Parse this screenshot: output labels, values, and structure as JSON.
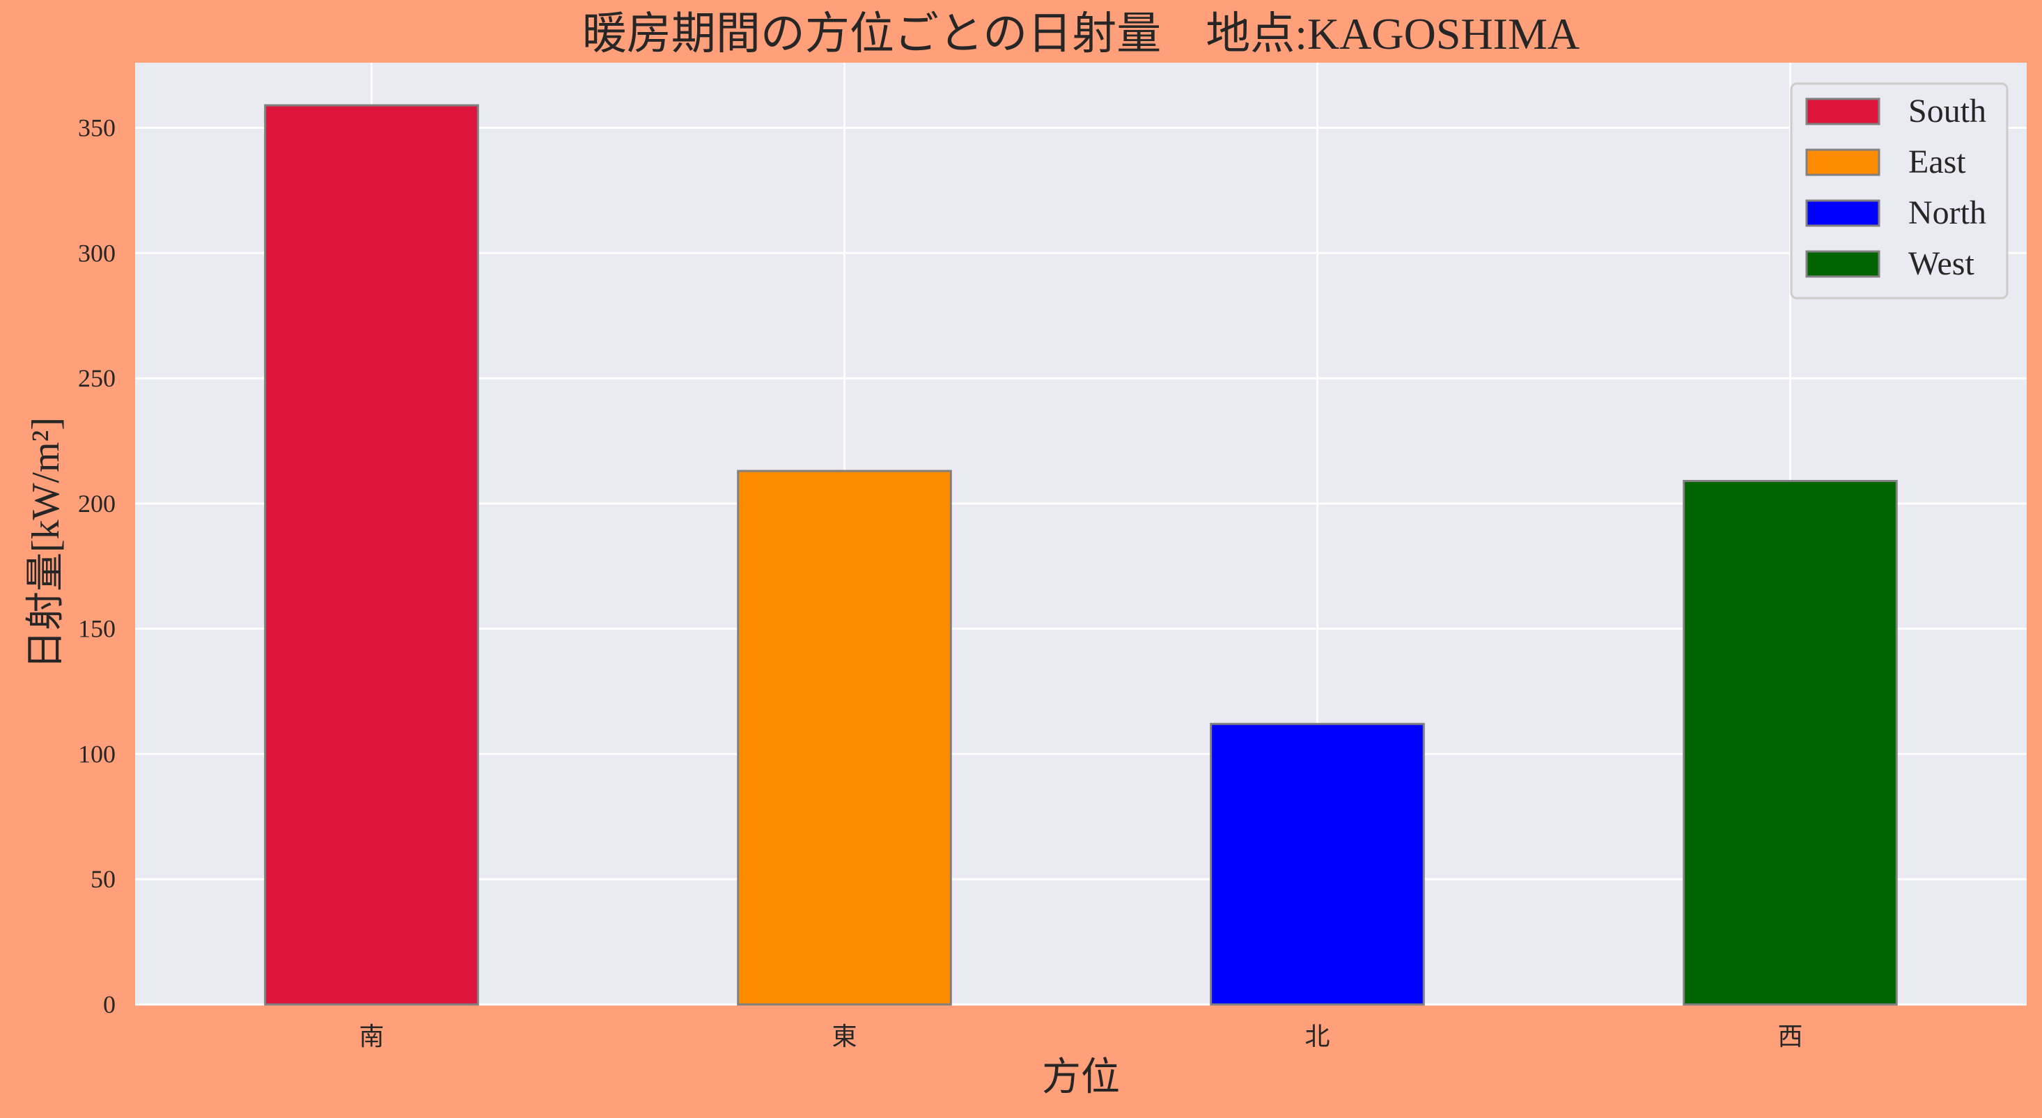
{
  "chart_data": {
    "type": "bar",
    "title": "暖房期間の方位ごとの日射量　地点:KAGOSHIMA",
    "xlabel": "方位",
    "ylabel": "日射量[kW/m²]",
    "categories": [
      "南",
      "東",
      "北",
      "西"
    ],
    "values": [
      359,
      213,
      112,
      209
    ],
    "colors": [
      "#dc143c",
      "#ff8c00",
      "#0000ff",
      "#006400"
    ],
    "ylim": [
      0,
      376
    ],
    "yticks": [
      0,
      50,
      100,
      150,
      200,
      250,
      300,
      350
    ],
    "grid": true,
    "legend": {
      "placement": "top-right",
      "entries": [
        "South",
        "East",
        "North",
        "West"
      ]
    },
    "style": {
      "page_background": "#ffa07a",
      "plot_background": "#eaeaf2",
      "grid_color": "#ffffff",
      "bar_edge_color": "#808080",
      "text_color": "#262626"
    }
  }
}
